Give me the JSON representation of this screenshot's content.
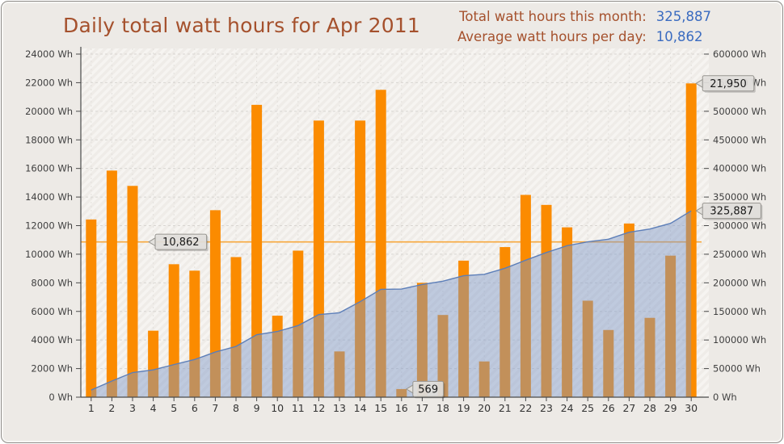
{
  "header": {
    "title": "Daily total watt hours for Apr 2011",
    "stats": [
      {
        "label": "Total watt hours this month:",
        "value": "325,887"
      },
      {
        "label": "Average watt hours per day:",
        "value": "10,862"
      }
    ]
  },
  "chart_data": {
    "type": "bar",
    "title": "Daily total watt hours for Apr 2011",
    "categories": [
      "1",
      "2",
      "3",
      "4",
      "5",
      "6",
      "7",
      "8",
      "9",
      "10",
      "11",
      "12",
      "13",
      "14",
      "15",
      "16",
      "17",
      "18",
      "19",
      "20",
      "21",
      "22",
      "23",
      "24",
      "25",
      "26",
      "27",
      "28",
      "29",
      "30"
    ],
    "series": [
      {
        "name": "Daily total watt hours",
        "type": "bar",
        "axis": "left",
        "values": [
          12430,
          15850,
          14780,
          4650,
          9300,
          8850,
          13080,
          9800,
          20450,
          5700,
          10250,
          19350,
          3200,
          19350,
          21500,
          569,
          8000,
          5750,
          9550,
          2500,
          10500,
          14150,
          13450,
          11880,
          6750,
          4700,
          12148,
          5550,
          9900,
          21950
        ]
      },
      {
        "name": "Cumulative watt hours",
        "type": "area",
        "axis": "right",
        "values": [
          12430,
          28280,
          43060,
          47710,
          57010,
          65860,
          78940,
          88740,
          109190,
          114890,
          125140,
          144490,
          147690,
          167040,
          188540,
          189109,
          197109,
          202859,
          212409,
          214909,
          225409,
          239559,
          253009,
          264889,
          271639,
          276339,
          288487,
          294037,
          303937,
          325887
        ]
      }
    ],
    "left_axis": {
      "min": 0,
      "max": 24000,
      "step": 2000,
      "unit": "Wh"
    },
    "right_axis": {
      "min": 0,
      "max": 600000,
      "step": 50000,
      "unit": "Wh"
    },
    "average_line": {
      "value": 10862,
      "label": "10,862"
    },
    "annotations": [
      {
        "label": "569",
        "day": 16,
        "series": "daily",
        "value": 569
      },
      {
        "label": "21,950",
        "day": 30,
        "series": "daily",
        "value": 21950
      },
      {
        "label": "325,887",
        "day": 30,
        "series": "cumulative",
        "value": 325887
      }
    ],
    "grid": true,
    "legend_position": "none",
    "colors": {
      "bar": "#fb8b00",
      "area_fill": "#7d96c8",
      "area_line": "#5c7eb8",
      "average_line": "#f7a83d",
      "title": "#a5512d",
      "stat_label": "#a5512d",
      "stat_value": "#3a6bc0",
      "axis_text": "#3f3f3f",
      "grid_line": "#d8d5d1",
      "tooltip_bg": "#e3e1dd",
      "tooltip_border": "#96948f"
    }
  }
}
